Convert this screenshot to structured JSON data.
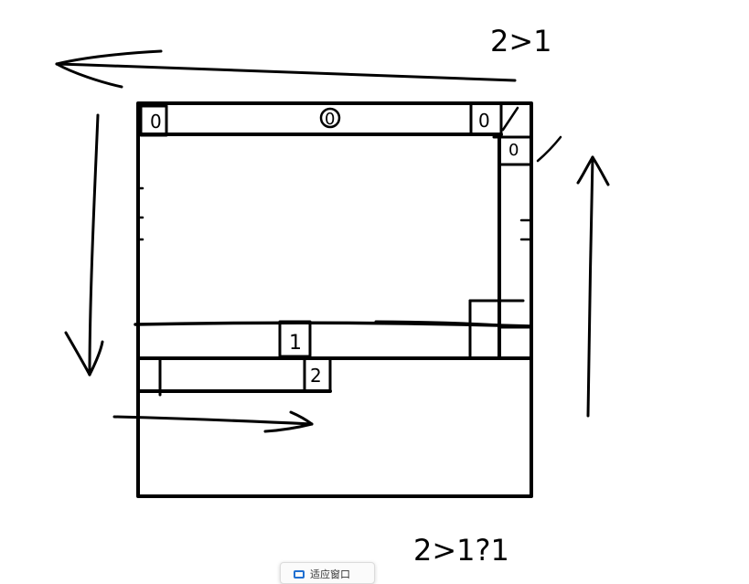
{
  "annotations": {
    "top_right": "2>1",
    "bottom": "2>1?1"
  },
  "cell_labels": {
    "top_left_marker": "0",
    "top_center": "0",
    "top_right": "0",
    "right_top": "0",
    "middle_right": "1",
    "lower_left": "2"
  },
  "toolbar": {
    "fit_window_label": "适应窗口",
    "fit_window_icon": "window-icon",
    "icon_color": "#1f6fd1"
  },
  "colors": {
    "ink": "#000000",
    "background": "#ffffff"
  }
}
